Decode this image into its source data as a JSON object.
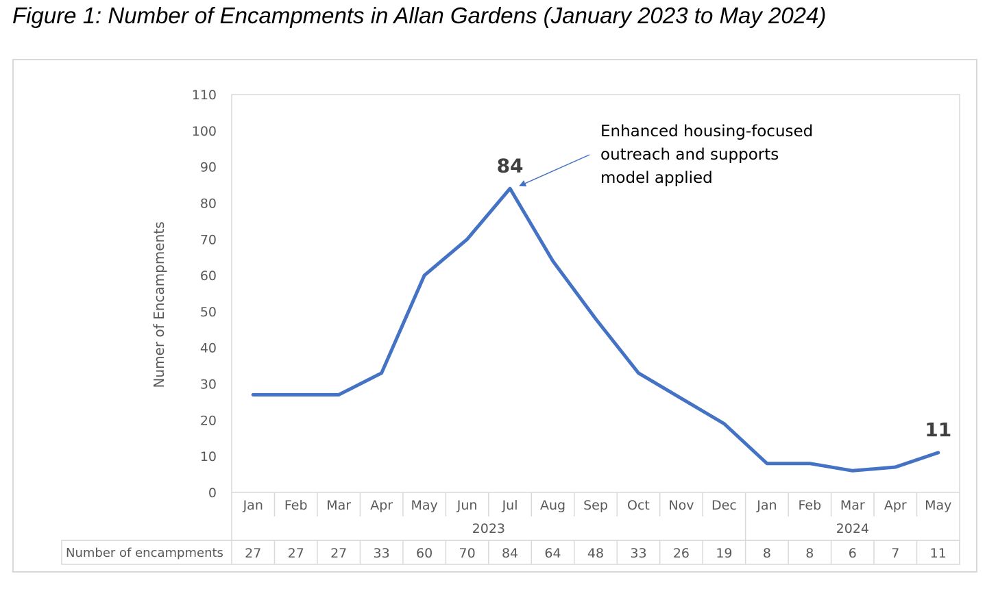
{
  "figure_title": "Figure 1: Number of Encampments in Allan Gardens (January 2023 to May 2024)",
  "colors": {
    "line": "#4472c4",
    "grid_border": "#d9d9d9",
    "text": "#595959",
    "label_text": "#404040"
  },
  "chart_data": {
    "type": "line",
    "title": "",
    "xlabel": "",
    "ylabel": "Numer of Encampments",
    "ylim": [
      0,
      110
    ],
    "yticks": [
      0,
      10,
      20,
      30,
      40,
      50,
      60,
      70,
      80,
      90,
      100,
      110
    ],
    "grid": false,
    "categories": [
      "Jan",
      "Feb",
      "Mar",
      "Apr",
      "May",
      "Jun",
      "Jul",
      "Aug",
      "Sep",
      "Oct",
      "Nov",
      "Dec",
      "Jan",
      "Feb",
      "Mar",
      "Apr",
      "May"
    ],
    "year_groups": [
      {
        "label": "2023",
        "count": 12
      },
      {
        "label": "2024",
        "count": 5
      }
    ],
    "series": [
      {
        "name": "Number of encampments",
        "values": [
          27,
          27,
          27,
          33,
          60,
          70,
          84,
          64,
          48,
          33,
          26,
          19,
          8,
          8,
          6,
          7,
          11
        ]
      }
    ],
    "data_labels": [
      {
        "index": 6,
        "text": "84"
      },
      {
        "index": 16,
        "text": "11"
      }
    ],
    "annotation": {
      "lines": [
        "Enhanced housing-focused",
        "outreach and supports",
        "model applied"
      ],
      "points_to_index": 6
    },
    "data_table": {
      "row_label": "Number of encampments",
      "values": [
        "27",
        "27",
        "27",
        "33",
        "60",
        "70",
        "84",
        "64",
        "48",
        "33",
        "26",
        "19",
        "8",
        "8",
        "6",
        "7",
        "11"
      ]
    }
  }
}
